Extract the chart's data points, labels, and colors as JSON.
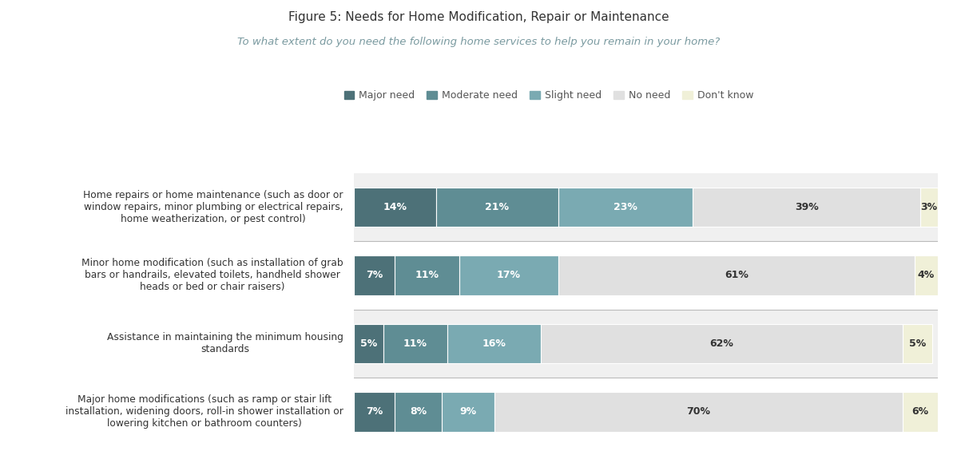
{
  "title": "Figure 5: Needs for Home Modification, Repair or Maintenance",
  "subtitle": "To what extent do you need the following home services to help you remain in your home?",
  "categories": [
    "Home repairs or home maintenance (such as door or\nwindow repairs, minor plumbing or electrical repairs,\nhome weatherization, or pest control)",
    "Minor home modification (such as installation of grab\nbars or handrails, elevated toilets, handheld shower\nheads or bed or chair raisers)",
    "Assistance in maintaining the minimum housing\nstandards",
    "Major home modifications (such as ramp or stair lift\ninstallation, widening doors, roll-in shower installation or\nlowering kitchen or bathroom counters)"
  ],
  "series": {
    "Major need": [
      14,
      7,
      5,
      7
    ],
    "Moderate need": [
      21,
      11,
      11,
      8
    ],
    "Slight need": [
      23,
      17,
      16,
      9
    ],
    "No need": [
      39,
      61,
      62,
      70
    ],
    "Don't know": [
      3,
      4,
      5,
      6
    ]
  },
  "colors": {
    "Major need": "#4d7178",
    "Moderate need": "#5f8d94",
    "Slight need": "#7aaab2",
    "No need": "#e0e0e0",
    "Don't know": "#f0f0d8"
  },
  "text_colors": {
    "Major need": "white",
    "Moderate need": "white",
    "Slight need": "white",
    "No need": "#333333",
    "Don't know": "#333333"
  },
  "row_bg_colors": [
    "#f0f0f0",
    "#ffffff",
    "#f0f0f0",
    "#ffffff"
  ],
  "subtitle_bg": "#e8e8ea",
  "subtitle_text_color": "#7a9aa0",
  "background_color": "#ffffff",
  "bar_height": 0.58,
  "figsize": [
    11.98,
    5.7
  ],
  "dpi": 100
}
